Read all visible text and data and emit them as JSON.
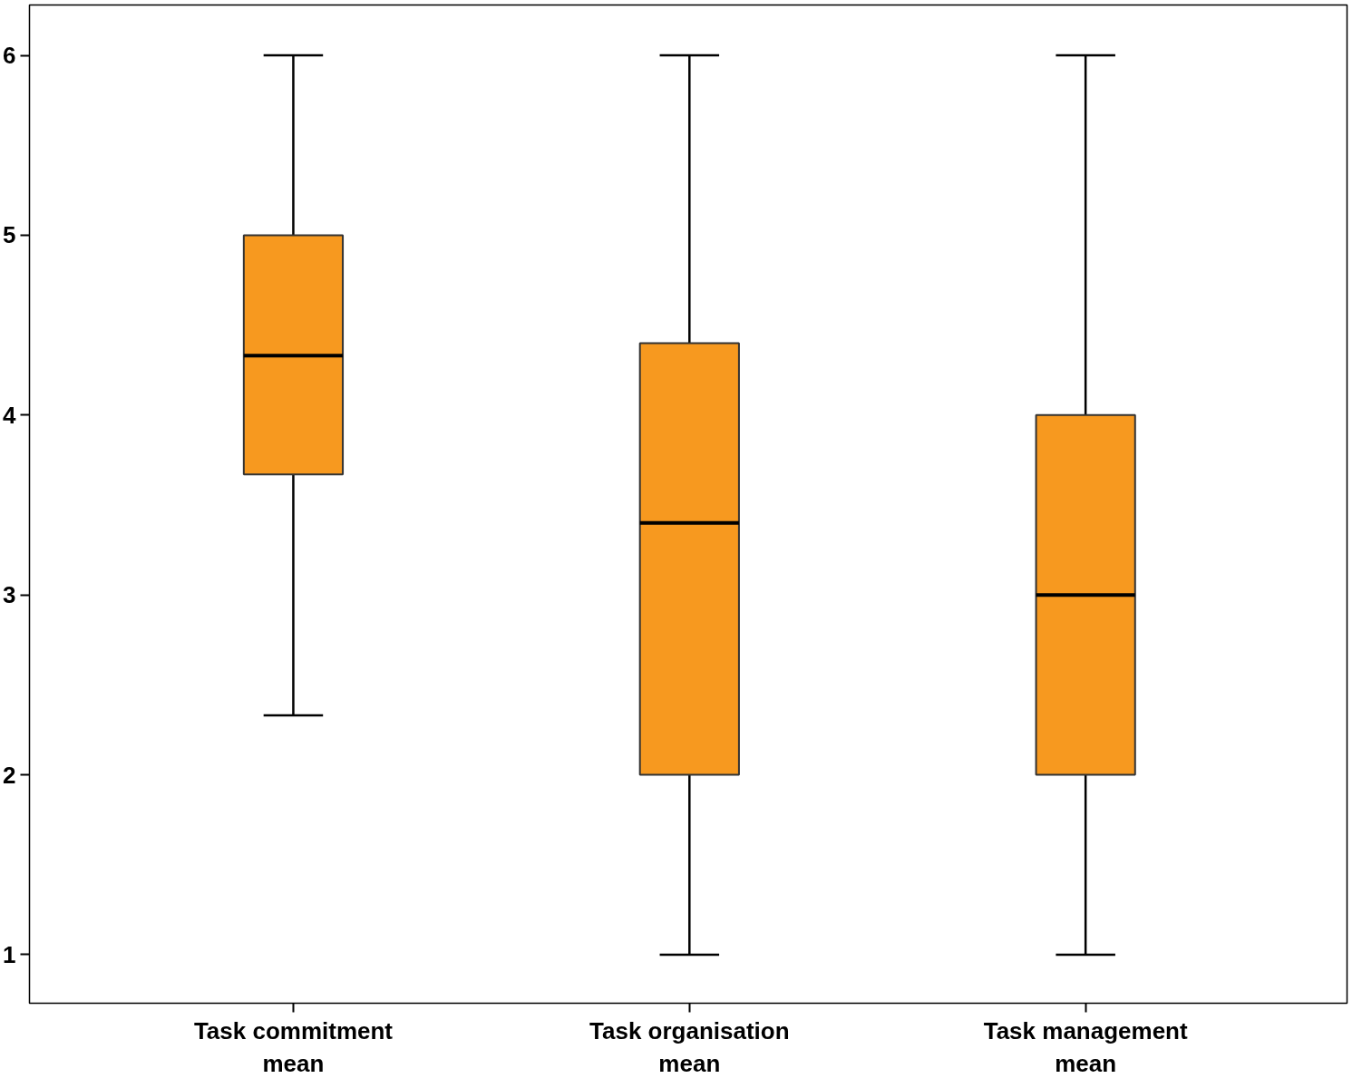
{
  "chart_data": {
    "type": "box",
    "categories": [
      "Task commitment mean",
      "Task organisation mean",
      "Task management mean"
    ],
    "boxes": [
      {
        "low": 2.33,
        "q1": 3.67,
        "median": 4.33,
        "q3": 5,
        "high": 6
      },
      {
        "low": 1,
        "q1": 2,
        "median": 3.4,
        "q3": 4.4,
        "high": 6
      },
      {
        "low": 1,
        "q1": 2,
        "median": 3,
        "q3": 4,
        "high": 6
      }
    ],
    "color": "#f7991f",
    "ylim": [
      0.73,
      6.28
    ],
    "yticks": [
      1,
      2,
      3,
      4,
      5,
      6
    ],
    "grid": false
  }
}
